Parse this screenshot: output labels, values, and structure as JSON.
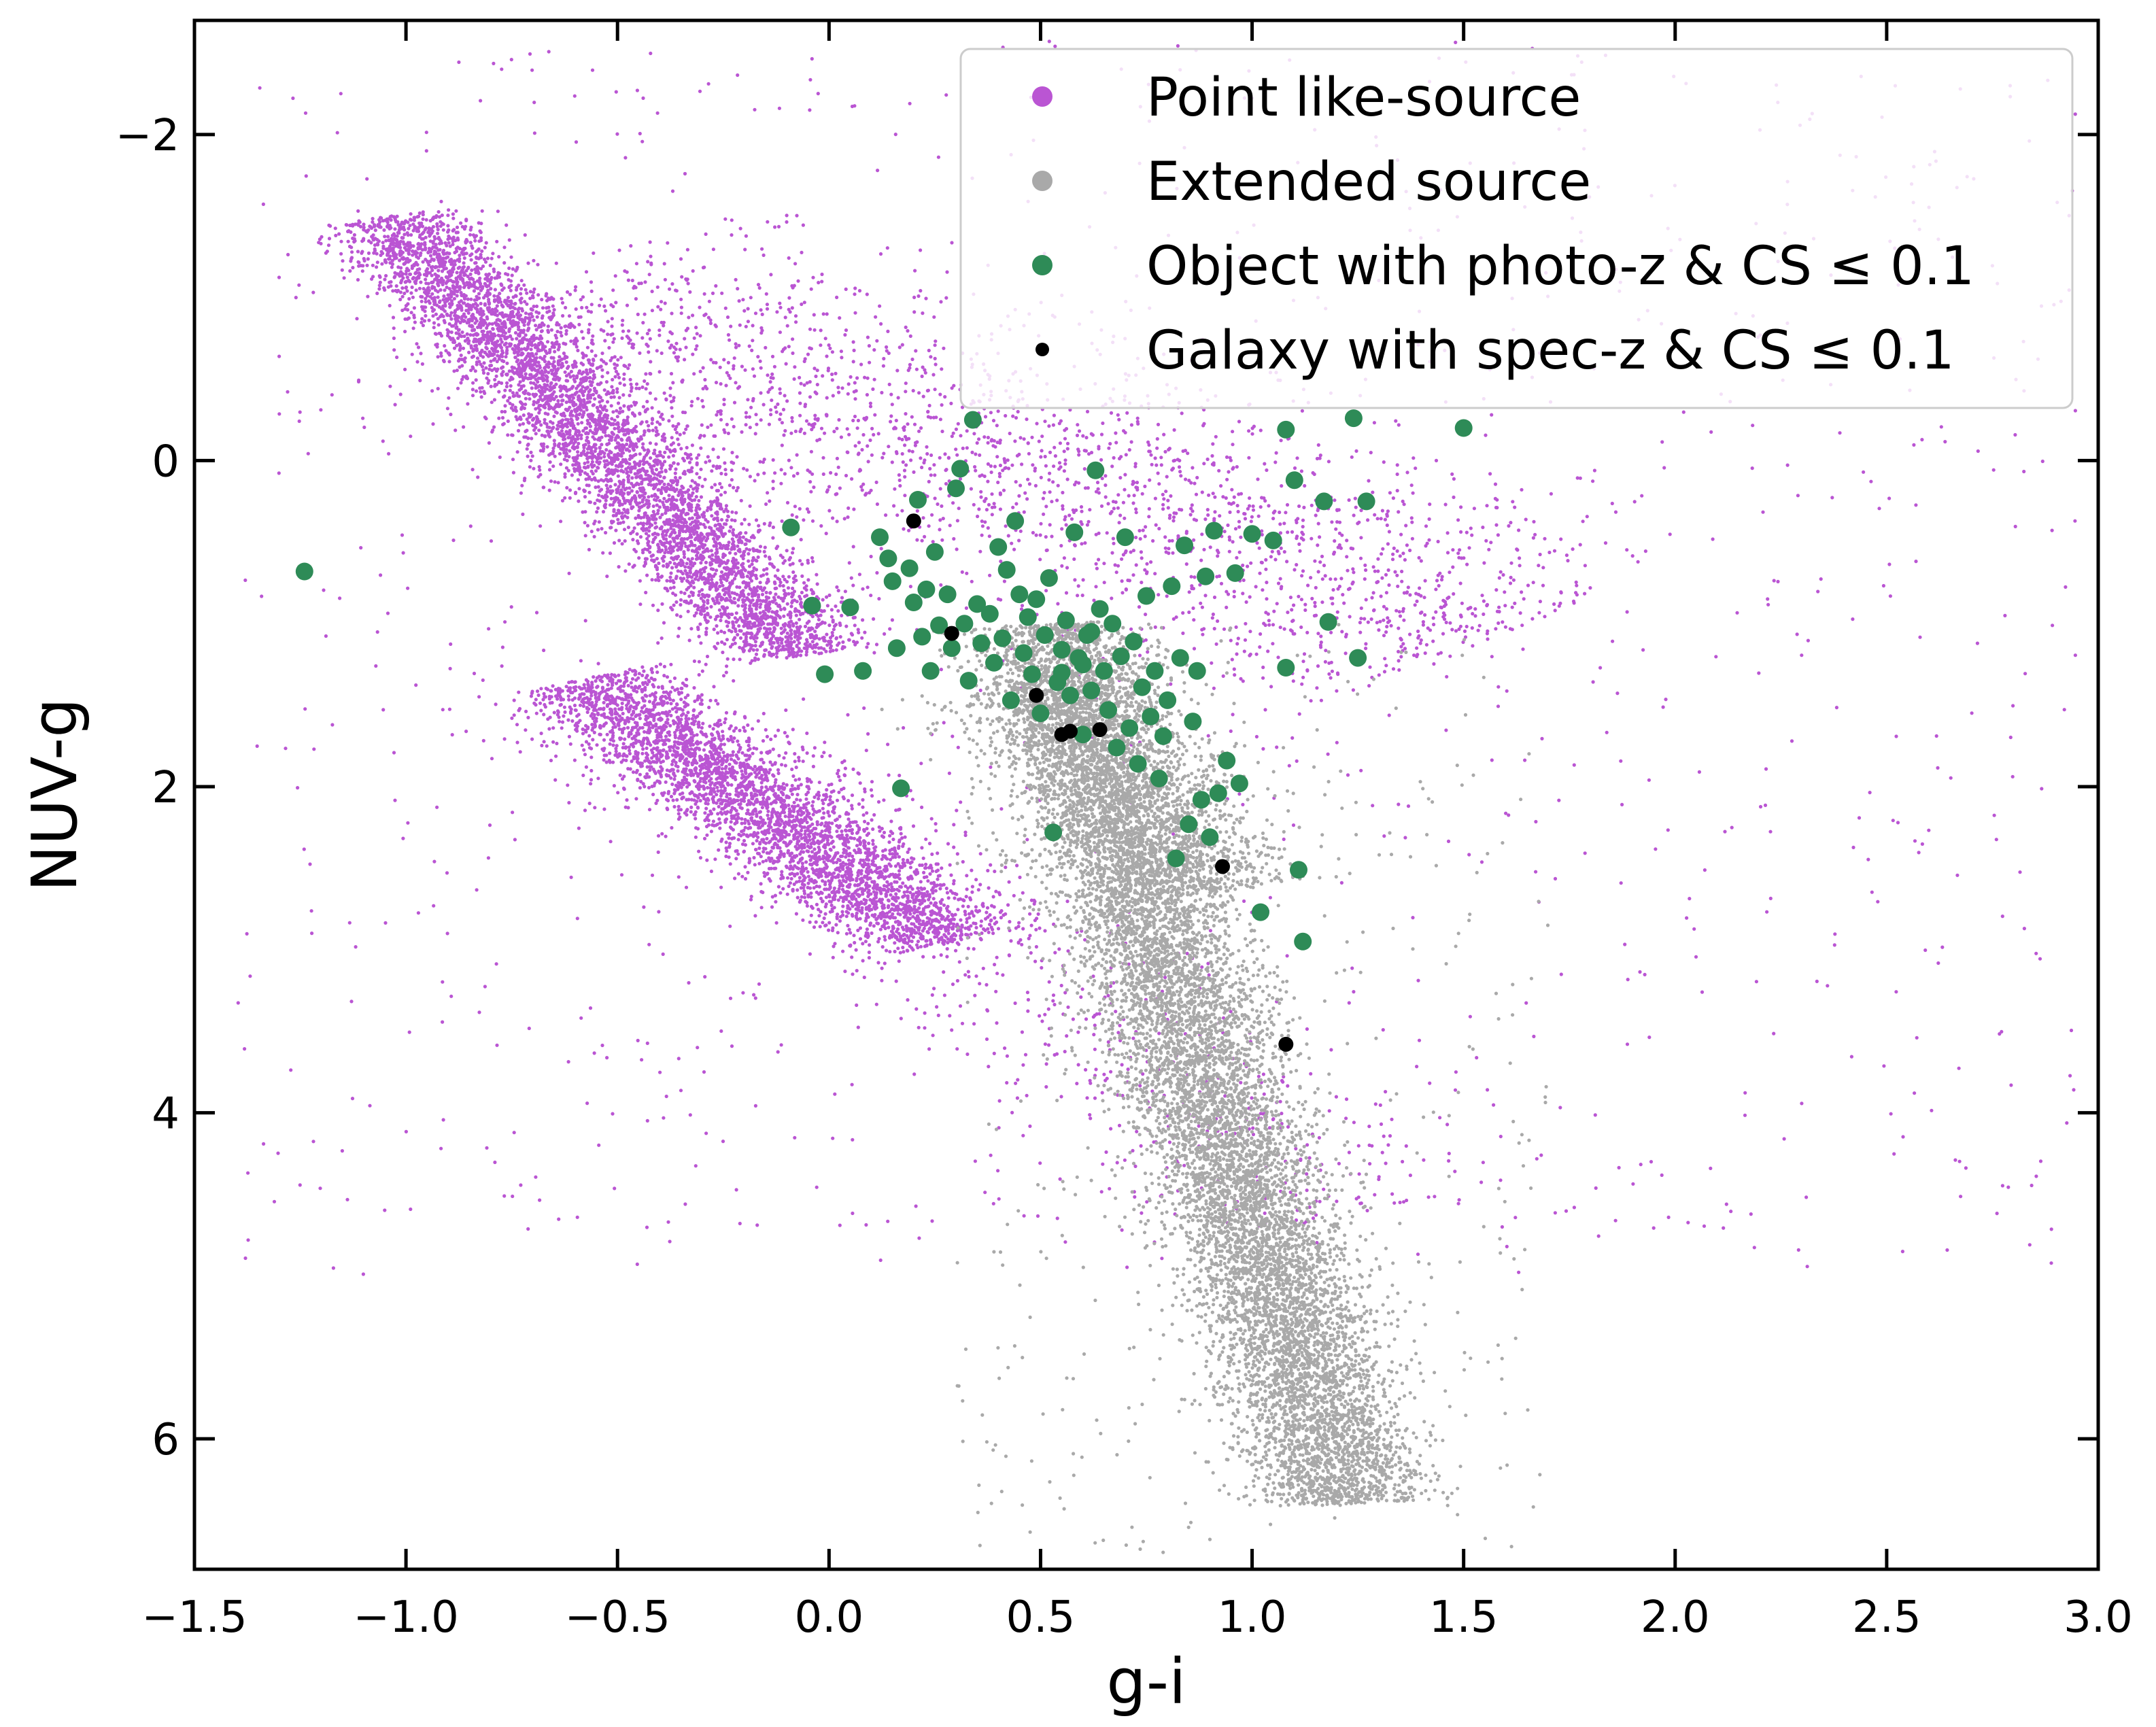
{
  "chart_data": {
    "type": "scatter",
    "xlabel": "g-i",
    "ylabel": "NUV-g",
    "xlim": [
      -1.5,
      3.0
    ],
    "ylim": [
      6.8,
      -2.7
    ],
    "y_inverted": true,
    "xticks": [
      -1.5,
      -1.0,
      -0.5,
      0.0,
      0.5,
      1.0,
      1.5,
      2.0,
      2.5,
      3.0
    ],
    "xtick_labels": [
      "−1.5",
      "−1.0",
      "−0.5",
      "0.0",
      "0.5",
      "1.0",
      "1.5",
      "2.0",
      "2.5",
      "3.0"
    ],
    "yticks": [
      -2,
      0,
      2,
      4,
      6
    ],
    "ytick_labels": [
      "−2",
      "0",
      "2",
      "4",
      "6"
    ],
    "legend_position": "top-right",
    "grid": false,
    "series": [
      {
        "name": "Point like-source",
        "color": "#ba55d3",
        "marker": "small-dot",
        "clusters": [
          {
            "from": [
              -1.0,
              -1.4
            ],
            "to": [
              -0.1,
              1.1
            ],
            "spread": 0.15,
            "n": 5000
          },
          {
            "from": [
              -0.55,
              1.4
            ],
            "to": [
              0.25,
              2.9
            ],
            "spread": 0.17,
            "n": 3600
          },
          {
            "from": [
              -0.6,
              -0.9
            ],
            "to": [
              1.5,
              1.0
            ],
            "spread": 0.55,
            "n": 2200
          },
          {
            "from": [
              -0.3,
              1.8
            ],
            "to": [
              1.2,
              4.5
            ],
            "spread": 0.35,
            "n": 700
          }
        ],
        "halo": {
          "xlim": [
            -1.4,
            2.95
          ],
          "ylim": [
            -2.6,
            5.0
          ],
          "n": 1000
        }
      },
      {
        "name": "Extended source",
        "color": "#a9a9a9",
        "marker": "small-dot",
        "clusters": [
          {
            "from": [
              0.55,
              1.2
            ],
            "to": [
              1.2,
              6.2
            ],
            "spread": 0.17,
            "n": 11000
          },
          {
            "from": [
              0.5,
              1.4
            ],
            "to": [
              0.9,
              2.6
            ],
            "spread": 0.22,
            "n": 1500
          }
        ],
        "halo": {
          "xlim": [
            0.3,
            1.7
          ],
          "ylim": [
            1.0,
            6.7
          ],
          "n": 400
        }
      },
      {
        "name": "Object with photo-z & CS ≤ 0.1",
        "color": "#2e8b57",
        "marker": "large-dot",
        "points": [
          [
            -1.24,
            0.68
          ],
          [
            -0.09,
            0.41
          ],
          [
            -0.04,
            0.89
          ],
          [
            -0.01,
            1.31
          ],
          [
            0.05,
            0.9
          ],
          [
            0.08,
            1.29
          ],
          [
            0.12,
            0.47
          ],
          [
            0.14,
            0.6
          ],
          [
            0.15,
            0.74
          ],
          [
            0.16,
            1.15
          ],
          [
            0.17,
            2.01
          ],
          [
            0.19,
            0.66
          ],
          [
            0.2,
            0.87
          ],
          [
            0.21,
            0.24
          ],
          [
            0.22,
            1.08
          ],
          [
            0.23,
            0.79
          ],
          [
            0.24,
            1.29
          ],
          [
            0.25,
            0.56
          ],
          [
            0.26,
            1.01
          ],
          [
            0.28,
            0.82
          ],
          [
            0.29,
            1.15
          ],
          [
            0.3,
            0.17
          ],
          [
            0.31,
            0.05
          ],
          [
            0.32,
            1.0
          ],
          [
            0.33,
            1.35
          ],
          [
            0.34,
            -0.25
          ],
          [
            0.35,
            0.88
          ],
          [
            0.36,
            1.12
          ],
          [
            0.38,
            0.94
          ],
          [
            0.39,
            1.24
          ],
          [
            0.4,
            0.53
          ],
          [
            0.41,
            1.09
          ],
          [
            0.42,
            0.67
          ],
          [
            0.43,
            1.47
          ],
          [
            0.44,
            0.37
          ],
          [
            0.45,
            0.82
          ],
          [
            0.46,
            1.18
          ],
          [
            0.47,
            0.96
          ],
          [
            0.48,
            1.31
          ],
          [
            0.49,
            0.85
          ],
          [
            0.5,
            1.55
          ],
          [
            0.51,
            1.07
          ],
          [
            0.52,
            0.72
          ],
          [
            0.53,
            2.28
          ],
          [
            0.54,
            1.36
          ],
          [
            0.55,
            1.16
          ],
          [
            0.56,
            0.98
          ],
          [
            0.57,
            1.44
          ],
          [
            0.58,
            0.44
          ],
          [
            0.59,
            1.21
          ],
          [
            0.6,
            1.68
          ],
          [
            0.61,
            1.07
          ],
          [
            0.62,
            1.41
          ],
          [
            0.63,
            0.06
          ],
          [
            0.64,
            0.91
          ],
          [
            0.65,
            1.29
          ],
          [
            0.66,
            1.53
          ],
          [
            0.67,
            1.0
          ],
          [
            0.68,
            1.76
          ],
          [
            0.69,
            1.2
          ],
          [
            0.7,
            0.47
          ],
          [
            0.71,
            1.64
          ],
          [
            0.72,
            1.11
          ],
          [
            0.73,
            1.86
          ],
          [
            0.74,
            1.39
          ],
          [
            0.75,
            0.83
          ],
          [
            0.76,
            1.57
          ],
          [
            0.77,
            1.29
          ],
          [
            0.78,
            1.95
          ],
          [
            0.79,
            1.69
          ],
          [
            0.8,
            1.47
          ],
          [
            0.81,
            0.77
          ],
          [
            0.82,
            2.44
          ],
          [
            0.83,
            1.21
          ],
          [
            0.84,
            0.52
          ],
          [
            0.85,
            2.23
          ],
          [
            0.86,
            1.6
          ],
          [
            0.87,
            1.29
          ],
          [
            0.88,
            2.08
          ],
          [
            0.89,
            0.71
          ],
          [
            0.9,
            2.31
          ],
          [
            0.91,
            0.43
          ],
          [
            0.92,
            2.04
          ],
          [
            0.94,
            1.84
          ],
          [
            0.96,
            0.69
          ],
          [
            0.97,
            1.98
          ],
          [
            1.0,
            0.45
          ],
          [
            1.02,
            2.77
          ],
          [
            1.05,
            0.49
          ],
          [
            1.08,
            1.27
          ],
          [
            1.08,
            -0.19
          ],
          [
            1.1,
            0.12
          ],
          [
            1.11,
            2.51
          ],
          [
            1.12,
            2.95
          ],
          [
            1.17,
            0.25
          ],
          [
            1.18,
            0.99
          ],
          [
            1.24,
            -0.26
          ],
          [
            1.25,
            1.21
          ],
          [
            1.27,
            0.25
          ],
          [
            1.5,
            -0.2
          ],
          [
            0.62,
            1.05
          ],
          [
            0.55,
            1.3
          ],
          [
            0.6,
            1.25
          ]
        ]
      },
      {
        "name": "Galaxy with spec-z & CS ≤ 0.1",
        "color": "#000000",
        "marker": "medium-dot",
        "points": [
          [
            0.2,
            0.37
          ],
          [
            0.29,
            1.06
          ],
          [
            0.49,
            1.44
          ],
          [
            0.55,
            1.68
          ],
          [
            0.57,
            1.66
          ],
          [
            0.64,
            1.65
          ],
          [
            0.93,
            2.49
          ],
          [
            1.08,
            3.58
          ]
        ]
      }
    ]
  }
}
